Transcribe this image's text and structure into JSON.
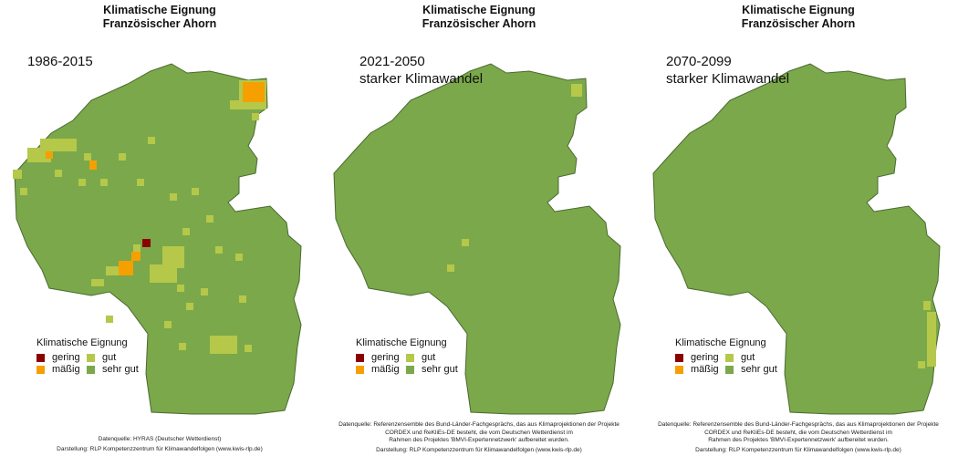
{
  "panels": [
    {
      "title_line1": "Klimatische Eignung",
      "title_line2": "Französischer Ahorn",
      "period_line1": "1986-2015",
      "period_line2": "",
      "legend_title": "Klimatische Eignung",
      "legend": {
        "gering": "gering",
        "maessig": "mäßig",
        "gut": "gut",
        "sehr_gut": "sehr gut"
      },
      "source_lines": [
        "Datenquelle: HYRAS (Deutscher Wetterdienst)",
        "Darstellung: RLP Kompetenzzentrum für Klimawandelfolgen (www.kwis-rlp.de)"
      ]
    },
    {
      "title_line1": "Klimatische Eignung",
      "title_line2": "Französischer Ahorn",
      "period_line1": "2021-2050",
      "period_line2": "starker Klimawandel",
      "legend_title": "Klimatische Eignung",
      "legend": {
        "gering": "gering",
        "maessig": "mäßig",
        "gut": "gut",
        "sehr_gut": "sehr gut"
      },
      "source_lines": [
        "Datenquelle: Referenzensemble des Bund-Länder-Fachgesprächs, das aus Klimaprojektionen der Projekte",
        "CORDEX und ReKliEs-DE besteht, die vom Deutschen Wetterdienst im",
        "Rahmen des Projektes 'BMVI-Expertennetzwerk' aufbereitet wurden.",
        "Darstellung: RLP Kompetenzzentrum für Klimawandelfolgen (www.kwis-rlp.de)"
      ]
    },
    {
      "title_line1": "Klimatische Eignung",
      "title_line2": "Französischer Ahorn",
      "period_line1": "2070-2099",
      "period_line2": "starker Klimawandel",
      "legend_title": "Klimatische Eignung",
      "legend": {
        "gering": "gering",
        "maessig": "mäßig",
        "gut": "gut",
        "sehr_gut": "sehr gut"
      },
      "source_lines": [
        "Datenquelle: Referenzensemble des Bund-Länder-Fachgesprächs, das aus Klimaprojektionen der Projekte",
        "CORDEX und ReKliEs-DE besteht, die vom Deutschen Wetterdienst im",
        "Rahmen des Projektes 'BMVI-Expertennetzwerk' aufbereitet wurden.",
        "Darstellung: RLP Kompetenzzentrum für Klimawandelfolgen (www.kwis-rlp.de)"
      ]
    }
  ],
  "colors": {
    "gering": "#8b0000",
    "maessig": "#f5a000",
    "gut": "#b5c84a",
    "sehr_gut": "#7ba84a",
    "border": "#4a6a30"
  }
}
